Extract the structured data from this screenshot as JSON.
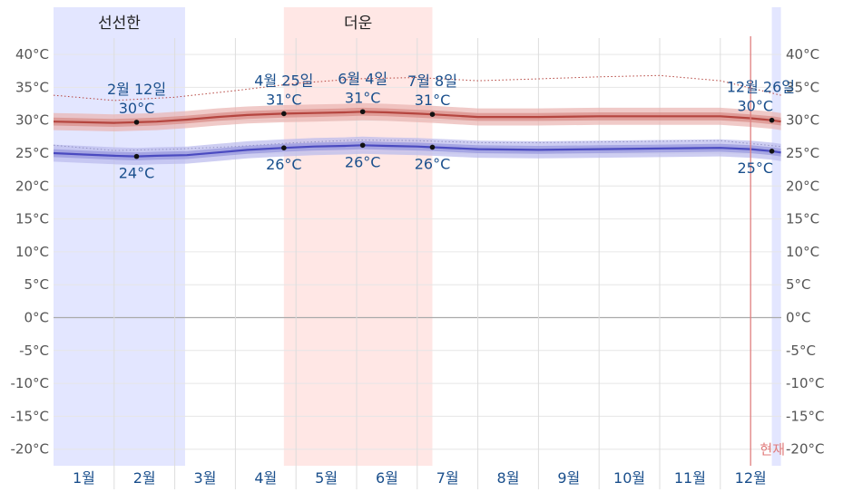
{
  "chart_data": {
    "type": "line",
    "x_unit": "month",
    "ylim": [
      -22.5,
      45
    ],
    "y_ticks": [
      -20,
      -15,
      -10,
      -5,
      0,
      5,
      10,
      15,
      20,
      25,
      30,
      35,
      40
    ],
    "y_tick_labels": [
      "-20°C",
      "-15°C",
      "-10°C",
      "-5°C",
      "0°C",
      "5°C",
      "10°C",
      "15°C",
      "20°C",
      "25°C",
      "30°C",
      "35°C",
      "40°C"
    ],
    "months": [
      "1월",
      "2월",
      "3월",
      "4월",
      "5월",
      "6월",
      "7월",
      "8월",
      "9월",
      "10월",
      "11월",
      "12월"
    ],
    "seasons": [
      {
        "label": "선선한",
        "start": 0.0,
        "end": 2.17,
        "color": "#e3e6ff"
      },
      {
        "label": "",
        "start": 11.85,
        "end": 12.0,
        "color": "#e3e6ff"
      },
      {
        "label": "더운",
        "start": 3.8,
        "end": 6.25,
        "color": "#ffe7e5"
      }
    ],
    "now_marker": {
      "label": "현재",
      "x": 11.5
    },
    "series": [
      {
        "key": "high",
        "color": "#b5453f",
        "x": [
          0.0,
          0.5,
          1.0,
          1.37,
          1.7,
          2.2,
          2.7,
          3.2,
          3.8,
          4.3,
          4.8,
          5.1,
          5.5,
          6.0,
          6.25,
          7.0,
          8.0,
          9.0,
          10.0,
          11.0,
          11.5,
          11.85,
          12.0
        ],
        "values": [
          29.8,
          29.7,
          29.6,
          29.7,
          29.8,
          30.1,
          30.5,
          30.8,
          31.0,
          31.1,
          31.2,
          31.3,
          31.2,
          31.0,
          30.9,
          30.5,
          30.5,
          30.6,
          30.6,
          30.6,
          30.3,
          30.0,
          29.8
        ]
      },
      {
        "key": "low",
        "color": "#4a4ac0",
        "x": [
          0.0,
          0.5,
          1.0,
          1.37,
          1.7,
          2.2,
          2.7,
          3.2,
          3.8,
          4.3,
          4.8,
          5.1,
          5.5,
          6.0,
          6.25,
          7.0,
          8.0,
          9.0,
          10.0,
          11.0,
          11.5,
          11.85,
          12.0
        ],
        "values": [
          25.0,
          24.8,
          24.6,
          24.5,
          24.6,
          24.7,
          25.1,
          25.5,
          25.8,
          26.0,
          26.1,
          26.2,
          26.1,
          26.0,
          25.9,
          25.6,
          25.5,
          25.6,
          25.7,
          25.8,
          25.6,
          25.3,
          25.1
        ]
      },
      {
        "key": "high_p90",
        "style": "dotted",
        "color": "#b5453f",
        "x": [
          0.0,
          1.0,
          2.0,
          3.0,
          4.0,
          5.0,
          6.0,
          7.0,
          8.0,
          9.0,
          10.0,
          11.0,
          12.0
        ],
        "values": [
          33.8,
          33.0,
          33.5,
          34.5,
          35.6,
          36.3,
          36.5,
          36.0,
          36.3,
          36.6,
          36.8,
          36.0,
          33.8
        ]
      },
      {
        "key": "low_p10",
        "style": "dotted",
        "color": "#3a3a60",
        "x": [
          0.0,
          1.0,
          2.0,
          3.0,
          4.0,
          5.0,
          6.0,
          7.0,
          8.0,
          9.0,
          10.0,
          11.0,
          12.0
        ],
        "values": [
          26.2,
          25.4,
          25.6,
          26.0,
          26.6,
          27.0,
          26.9,
          26.6,
          26.6,
          26.7,
          26.8,
          26.9,
          26.0
        ]
      }
    ],
    "annotations": [
      {
        "date": "2월 12일",
        "temp": "30°C",
        "x": 1.37,
        "y": 29.7,
        "series": "high",
        "date_pos": "above",
        "temp_pos": "above"
      },
      {
        "date": "",
        "temp": "24°C",
        "x": 1.37,
        "y": 24.5,
        "series": "low",
        "temp_pos": "below"
      },
      {
        "date": "4월 25일",
        "temp": "31°C",
        "x": 3.8,
        "y": 31.0,
        "series": "high",
        "date_pos": "above",
        "temp_pos": "above"
      },
      {
        "date": "",
        "temp": "26°C",
        "x": 3.8,
        "y": 25.8,
        "series": "low",
        "temp_pos": "below"
      },
      {
        "date": "6월 4일",
        "temp": "31°C",
        "x": 5.1,
        "y": 31.3,
        "series": "high",
        "date_pos": "above",
        "temp_pos": "above"
      },
      {
        "date": "",
        "temp": "26°C",
        "x": 5.1,
        "y": 26.2,
        "series": "low",
        "temp_pos": "below"
      },
      {
        "date": "7월 8일",
        "temp": "31°C",
        "x": 6.25,
        "y": 30.9,
        "series": "high",
        "date_pos": "above",
        "temp_pos": "above"
      },
      {
        "date": "",
        "temp": "26°C",
        "x": 6.25,
        "y": 25.9,
        "series": "low",
        "temp_pos": "below"
      },
      {
        "date": "12월 26일",
        "temp": "30°C",
        "x": 11.85,
        "y": 30.0,
        "series": "high",
        "date_pos": "above",
        "temp_pos": "above"
      },
      {
        "date": "",
        "temp": "25°C",
        "x": 11.85,
        "y": 25.3,
        "series": "low",
        "temp_pos": "below"
      }
    ]
  }
}
